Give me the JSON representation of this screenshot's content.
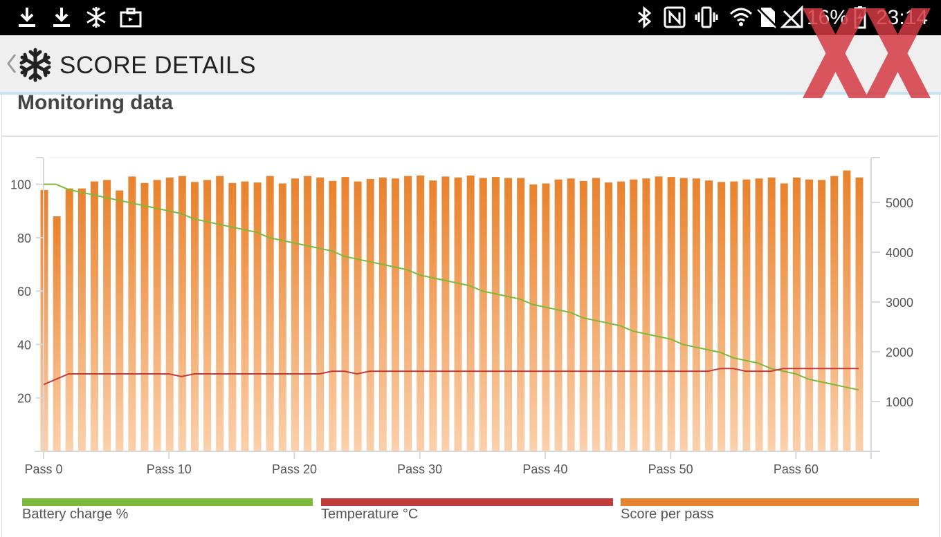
{
  "status_bar": {
    "battery_percent": "16%",
    "time": "23:14",
    "left_icons": [
      "download-icon",
      "download-icon",
      "snowflake-icon",
      "briefcase-icon"
    ],
    "right_icons": [
      "bluetooth-icon",
      "nfc-icon",
      "vibrate-icon",
      "wifi-icon",
      "no-sim-icon",
      "no-signal-icon",
      "battery-charging-icon"
    ]
  },
  "app_bar": {
    "title": "SCORE DETAILS",
    "back_icon": "chevron-left-icon",
    "app_icon": "snowflake-icon"
  },
  "section": {
    "heading": "Monitoring data"
  },
  "colors": {
    "battery": "#7cb939",
    "temperature": "#c23b3b",
    "score": "#e8822d",
    "score_light": "#fbd0ab",
    "watermark": "#d43b45"
  },
  "legend": [
    {
      "label": "Battery charge %",
      "color": "#7cb939"
    },
    {
      "label": "Temperature °C",
      "color": "#c23b3b"
    },
    {
      "label": "Score per pass",
      "color": "#e8822d"
    }
  ],
  "chart_data": {
    "type": "bar",
    "x_tick_labels": [
      "Pass 0",
      "Pass 10",
      "Pass 20",
      "Pass 30",
      "Pass 40",
      "Pass 50",
      "Pass 60"
    ],
    "x_tick_values": [
      0,
      10,
      20,
      30,
      40,
      50,
      60
    ],
    "xlim": [
      0,
      66
    ],
    "left_axis": {
      "ticks": [
        20,
        40,
        60,
        80,
        100
      ],
      "ylim": [
        0,
        110
      ]
    },
    "right_axis": {
      "ticks": [
        1000,
        2000,
        3000,
        4000,
        5000
      ],
      "ylim": [
        0,
        5900
      ]
    },
    "grid": false,
    "series": [
      {
        "name": "Score per pass",
        "kind": "bar",
        "axis": "right",
        "values": [
          5250,
          4720,
          5280,
          5280,
          5420,
          5450,
          5240,
          5520,
          5390,
          5450,
          5500,
          5530,
          5410,
          5450,
          5530,
          5390,
          5420,
          5400,
          5530,
          5380,
          5480,
          5530,
          5500,
          5430,
          5510,
          5420,
          5470,
          5500,
          5480,
          5530,
          5540,
          5440,
          5520,
          5500,
          5540,
          5490,
          5510,
          5490,
          5490,
          5360,
          5380,
          5460,
          5480,
          5430,
          5490,
          5400,
          5420,
          5460,
          5480,
          5520,
          5510,
          5490,
          5480,
          5440,
          5410,
          5420,
          5460,
          5480,
          5500,
          5380,
          5500,
          5460,
          5450,
          5530,
          5640,
          5500
        ]
      },
      {
        "name": "Battery charge %",
        "kind": "line",
        "axis": "left",
        "points": [
          [
            0,
            100
          ],
          [
            1,
            100
          ],
          [
            2,
            98
          ],
          [
            3,
            97
          ],
          [
            4,
            96
          ],
          [
            5,
            95
          ],
          [
            6,
            94
          ],
          [
            7,
            93
          ],
          [
            8,
            92
          ],
          [
            9,
            91
          ],
          [
            10,
            90
          ],
          [
            11,
            89
          ],
          [
            12,
            87
          ],
          [
            13,
            86
          ],
          [
            14,
            85
          ],
          [
            15,
            84
          ],
          [
            16,
            83
          ],
          [
            17,
            82
          ],
          [
            18,
            80
          ],
          [
            19,
            79
          ],
          [
            20,
            78
          ],
          [
            21,
            77
          ],
          [
            22,
            76
          ],
          [
            23,
            75
          ],
          [
            24,
            73
          ],
          [
            25,
            72
          ],
          [
            26,
            71
          ],
          [
            27,
            70
          ],
          [
            28,
            69
          ],
          [
            29,
            68
          ],
          [
            30,
            66
          ],
          [
            31,
            65
          ],
          [
            32,
            64
          ],
          [
            33,
            63
          ],
          [
            34,
            62
          ],
          [
            35,
            60
          ],
          [
            36,
            59
          ],
          [
            37,
            58
          ],
          [
            38,
            57
          ],
          [
            39,
            55
          ],
          [
            40,
            54
          ],
          [
            41,
            53
          ],
          [
            42,
            52
          ],
          [
            43,
            50
          ],
          [
            44,
            49
          ],
          [
            45,
            48
          ],
          [
            46,
            47
          ],
          [
            47,
            45
          ],
          [
            48,
            44
          ],
          [
            49,
            43
          ],
          [
            50,
            42
          ],
          [
            51,
            40
          ],
          [
            52,
            39
          ],
          [
            53,
            38
          ],
          [
            54,
            37
          ],
          [
            55,
            35
          ],
          [
            56,
            34
          ],
          [
            57,
            33
          ],
          [
            58,
            31
          ],
          [
            59,
            30
          ],
          [
            60,
            29
          ],
          [
            61,
            27
          ],
          [
            62,
            26
          ],
          [
            63,
            25
          ],
          [
            64,
            24
          ],
          [
            65,
            23
          ]
        ]
      },
      {
        "name": "Temperature °C",
        "kind": "line",
        "axis": "left",
        "points": [
          [
            0,
            25
          ],
          [
            1,
            27
          ],
          [
            2,
            29
          ],
          [
            3,
            29
          ],
          [
            4,
            29
          ],
          [
            5,
            29
          ],
          [
            6,
            29
          ],
          [
            7,
            29
          ],
          [
            8,
            29
          ],
          [
            9,
            29
          ],
          [
            10,
            29
          ],
          [
            11,
            28
          ],
          [
            12,
            29
          ],
          [
            13,
            29
          ],
          [
            14,
            29
          ],
          [
            15,
            29
          ],
          [
            16,
            29
          ],
          [
            17,
            29
          ],
          [
            18,
            29
          ],
          [
            19,
            29
          ],
          [
            20,
            29
          ],
          [
            21,
            29
          ],
          [
            22,
            29
          ],
          [
            23,
            30
          ],
          [
            24,
            30
          ],
          [
            25,
            29
          ],
          [
            26,
            30
          ],
          [
            27,
            30
          ],
          [
            28,
            30
          ],
          [
            29,
            30
          ],
          [
            30,
            30
          ],
          [
            31,
            30
          ],
          [
            32,
            30
          ],
          [
            33,
            30
          ],
          [
            34,
            30
          ],
          [
            35,
            30
          ],
          [
            36,
            30
          ],
          [
            37,
            30
          ],
          [
            38,
            30
          ],
          [
            39,
            30
          ],
          [
            40,
            30
          ],
          [
            41,
            30
          ],
          [
            42,
            30
          ],
          [
            43,
            30
          ],
          [
            44,
            30
          ],
          [
            45,
            30
          ],
          [
            46,
            30
          ],
          [
            47,
            30
          ],
          [
            48,
            30
          ],
          [
            49,
            30
          ],
          [
            50,
            30
          ],
          [
            51,
            30
          ],
          [
            52,
            30
          ],
          [
            53,
            30
          ],
          [
            54,
            31
          ],
          [
            55,
            31
          ],
          [
            56,
            30
          ],
          [
            57,
            30
          ],
          [
            58,
            30
          ],
          [
            59,
            31
          ],
          [
            60,
            31
          ],
          [
            61,
            31
          ],
          [
            62,
            31
          ],
          [
            63,
            31
          ],
          [
            64,
            31
          ],
          [
            65,
            31
          ]
        ]
      }
    ]
  }
}
